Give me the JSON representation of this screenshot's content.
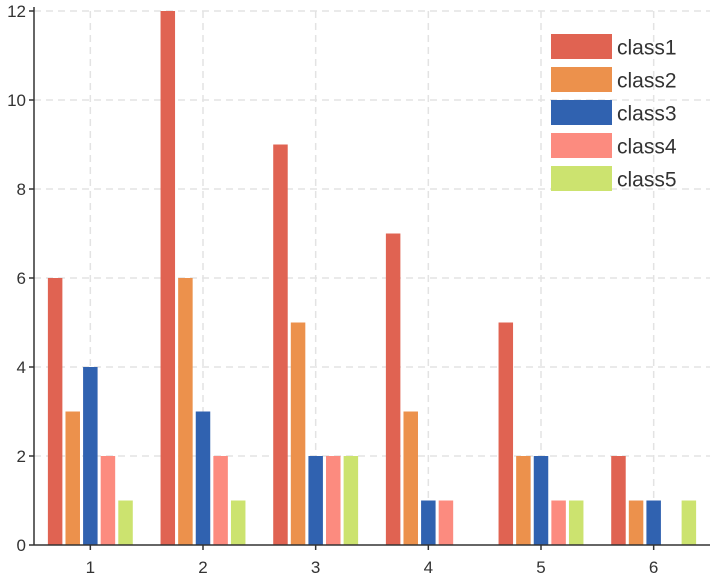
{
  "chart_data": {
    "type": "bar",
    "title": "",
    "xlabel": "",
    "ylabel": "",
    "categories": [
      "1",
      "2",
      "3",
      "4",
      "5",
      "6"
    ],
    "ylim": [
      0,
      12
    ],
    "y_ticks": [
      0,
      2,
      4,
      6,
      8,
      10,
      12
    ],
    "grid": true,
    "legend_position": "top-right",
    "series": [
      {
        "name": "class1",
        "color": "#e06352",
        "values": [
          6,
          12,
          9,
          7,
          5,
          2
        ]
      },
      {
        "name": "class2",
        "color": "#ec914c",
        "values": [
          3,
          6,
          5,
          3,
          2,
          1
        ]
      },
      {
        "name": "class3",
        "color": "#3062b0",
        "values": [
          4,
          3,
          2,
          1,
          2,
          1
        ]
      },
      {
        "name": "class4",
        "color": "#fc8b7f",
        "values": [
          2,
          2,
          2,
          1,
          1,
          0
        ]
      },
      {
        "name": "class5",
        "color": "#cce36f",
        "values": [
          1,
          1,
          2,
          0,
          1,
          1
        ]
      }
    ]
  }
}
